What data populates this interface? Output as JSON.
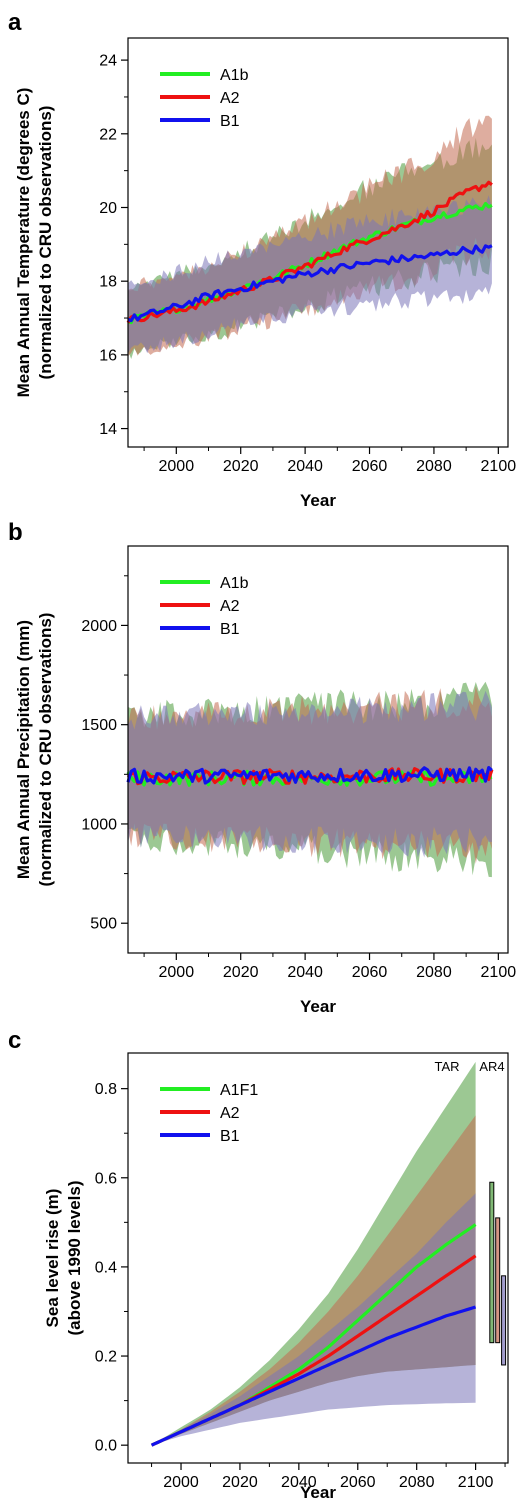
{
  "chart_data": [
    {
      "panel_label": "a",
      "type": "line",
      "ylabel_line1": "Mean Annual Temperature (degrees C)",
      "ylabel_line2": "(normalized to CRU observations)",
      "xlabel": "Year",
      "xlim": [
        1985,
        2103
      ],
      "ylim": [
        13.5,
        24.6
      ],
      "xticks": [
        2000,
        2020,
        2040,
        2060,
        2080,
        2100
      ],
      "yticks": [
        14,
        16,
        18,
        20,
        22,
        24
      ],
      "grid": false,
      "legend_position": "top-left",
      "series": [
        {
          "name": "A1b",
          "color": "#22ee22",
          "band_color": "#4a9a3a",
          "x": [
            1985,
            2000,
            2010,
            2020,
            2030,
            2040,
            2050,
            2060,
            2070,
            2080,
            2090,
            2098
          ],
          "y": [
            16.95,
            17.25,
            17.5,
            17.8,
            18.1,
            18.45,
            18.85,
            19.2,
            19.5,
            19.75,
            19.95,
            20.1
          ],
          "band_half_width": [
            0.9,
            0.95,
            1.0,
            1.05,
            1.1,
            1.2,
            1.3,
            1.4,
            1.5,
            1.55,
            1.6,
            1.6
          ]
        },
        {
          "name": "A2",
          "color": "#ee1111",
          "band_color": "#c26a50",
          "x": [
            1985,
            2000,
            2010,
            2020,
            2030,
            2040,
            2050,
            2060,
            2070,
            2080,
            2090,
            2098
          ],
          "y": [
            16.95,
            17.2,
            17.45,
            17.75,
            18.05,
            18.4,
            18.8,
            19.15,
            19.5,
            19.9,
            20.4,
            20.7
          ],
          "band_half_width": [
            0.9,
            0.95,
            1.0,
            1.05,
            1.1,
            1.2,
            1.3,
            1.4,
            1.5,
            1.6,
            1.7,
            1.75
          ]
        },
        {
          "name": "B1",
          "color": "#1111ee",
          "band_color": "#7a74b8",
          "x": [
            1985,
            2000,
            2010,
            2020,
            2030,
            2040,
            2050,
            2060,
            2070,
            2080,
            2090,
            2098
          ],
          "y": [
            16.95,
            17.3,
            17.6,
            17.8,
            18.0,
            18.2,
            18.35,
            18.5,
            18.6,
            18.7,
            18.85,
            18.9
          ],
          "band_half_width": [
            0.9,
            0.95,
            1.0,
            1.0,
            1.0,
            1.05,
            1.1,
            1.15,
            1.2,
            1.2,
            1.25,
            1.25
          ]
        }
      ]
    },
    {
      "panel_label": "b",
      "type": "line",
      "ylabel_line1": "Mean Annual Precipitation (mm)",
      "ylabel_line2": "(normalized to CRU observations)",
      "xlabel": "Year",
      "xlim": [
        1985,
        2103
      ],
      "ylim": [
        350,
        2400
      ],
      "xticks": [
        2000,
        2020,
        2040,
        2060,
        2080,
        2100
      ],
      "yticks": [
        500,
        1000,
        1500,
        2000
      ],
      "grid": false,
      "legend_position": "top-left",
      "series": [
        {
          "name": "A1b",
          "color": "#22ee22",
          "band_color": "#4a9a3a",
          "x": [
            1985,
            2098
          ],
          "y": [
            1230,
            1230
          ],
          "band_half_width": [
            320,
            420
          ]
        },
        {
          "name": "A2",
          "color": "#ee1111",
          "band_color": "#c26a50",
          "x": [
            1985,
            2098
          ],
          "y": [
            1235,
            1245
          ],
          "band_half_width": [
            300,
            380
          ]
        },
        {
          "name": "B1",
          "color": "#1111ee",
          "band_color": "#7a74b8",
          "x": [
            1985,
            2098
          ],
          "y": [
            1240,
            1250
          ],
          "band_half_width": [
            300,
            360
          ]
        }
      ]
    },
    {
      "panel_label": "c",
      "type": "area",
      "ylabel_line1": "Sea level rise (m)",
      "ylabel_line2": "(above 1990 levels)",
      "xlabel": "Year",
      "xlim": [
        1982,
        2111
      ],
      "ylim": [
        -0.04,
        0.88
      ],
      "xticks": [
        2000,
        2020,
        2040,
        2060,
        2080,
        2100
      ],
      "yticks": [
        0.0,
        0.2,
        0.4,
        0.6,
        0.8
      ],
      "yticks_format": 1,
      "grid": false,
      "legend_position": "top-left",
      "annotations": [
        "TAR",
        "AR4"
      ],
      "series": [
        {
          "name": "A1F1",
          "color": "#22ee22",
          "band_color": "#4a9a3a",
          "x": [
            1990,
            2000,
            2010,
            2020,
            2030,
            2040,
            2050,
            2060,
            2070,
            2080,
            2090,
            2100
          ],
          "y": [
            0.0,
            0.03,
            0.06,
            0.09,
            0.13,
            0.17,
            0.22,
            0.28,
            0.34,
            0.4,
            0.45,
            0.495
          ],
          "upper": [
            0.0,
            0.04,
            0.08,
            0.13,
            0.19,
            0.26,
            0.34,
            0.44,
            0.55,
            0.66,
            0.76,
            0.86
          ],
          "lower": [
            0.0,
            0.025,
            0.05,
            0.075,
            0.1,
            0.12,
            0.14,
            0.155,
            0.165,
            0.17,
            0.175,
            0.18
          ]
        },
        {
          "name": "A2",
          "color": "#ee1111",
          "band_color": "#c26a50",
          "x": [
            1990,
            2000,
            2010,
            2020,
            2030,
            2040,
            2050,
            2060,
            2070,
            2080,
            2090,
            2100
          ],
          "y": [
            0.0,
            0.03,
            0.06,
            0.09,
            0.125,
            0.16,
            0.2,
            0.245,
            0.29,
            0.335,
            0.38,
            0.425
          ],
          "upper": [
            0.0,
            0.035,
            0.075,
            0.12,
            0.17,
            0.23,
            0.3,
            0.38,
            0.47,
            0.56,
            0.65,
            0.74
          ],
          "lower": [
            0.0,
            0.025,
            0.05,
            0.075,
            0.1,
            0.12,
            0.14,
            0.155,
            0.165,
            0.17,
            0.175,
            0.18
          ]
        },
        {
          "name": "B1",
          "color": "#1111ee",
          "band_color": "#7a74b8",
          "x": [
            1990,
            2000,
            2010,
            2020,
            2030,
            2040,
            2050,
            2060,
            2070,
            2080,
            2090,
            2100
          ],
          "y": [
            0.0,
            0.03,
            0.06,
            0.09,
            0.12,
            0.15,
            0.18,
            0.21,
            0.24,
            0.265,
            0.29,
            0.31
          ],
          "upper": [
            0.0,
            0.035,
            0.07,
            0.11,
            0.155,
            0.2,
            0.255,
            0.31,
            0.37,
            0.43,
            0.5,
            0.565
          ],
          "lower": [
            0.0,
            0.02,
            0.035,
            0.05,
            0.06,
            0.07,
            0.08,
            0.085,
            0.09,
            0.092,
            0.094,
            0.095
          ]
        }
      ],
      "range_bars": [
        {
          "label": "A1F1",
          "color": "#4a9a3a",
          "x": 2105.5,
          "low": 0.23,
          "high": 0.59
        },
        {
          "label": "A2",
          "color": "#c26a50",
          "x": 2107.5,
          "low": 0.23,
          "high": 0.51
        },
        {
          "label": "B1",
          "color": "#7a74b8",
          "x": 2109.5,
          "low": 0.18,
          "high": 0.38
        }
      ]
    }
  ]
}
